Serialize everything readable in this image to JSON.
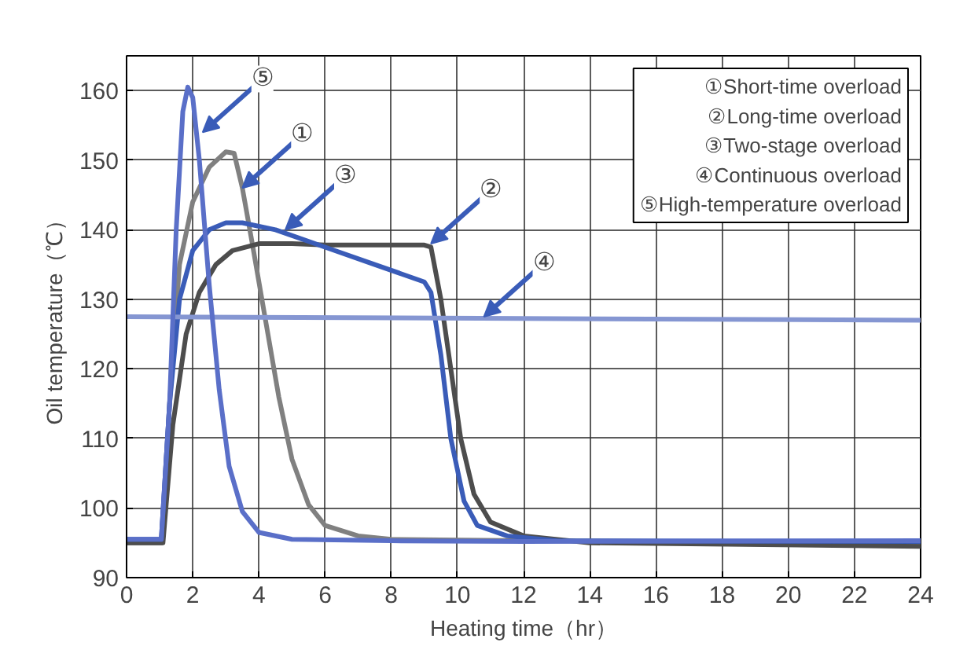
{
  "chart_data": {
    "type": "line",
    "xlabel": "Heating time（hr）",
    "ylabel": "Oil temperature（℃）",
    "xlim": [
      0,
      24
    ],
    "ylim": [
      90,
      165
    ],
    "xticks": [
      0,
      2,
      4,
      6,
      8,
      10,
      12,
      14,
      16,
      18,
      20,
      22,
      24
    ],
    "yticks": [
      90,
      100,
      110,
      120,
      130,
      140,
      150,
      160
    ],
    "grid": true,
    "line_style": "solid",
    "marker": "none",
    "series": [
      {
        "color": "#808080",
        "x": [
          0,
          1.05,
          1.3,
          1.6,
          2,
          2.5,
          3,
          3.25,
          3.5,
          3.8,
          4.2,
          4.6,
          5,
          5.5,
          6,
          7,
          8,
          12,
          24
        ],
        "values": [
          95,
          95,
          115,
          135,
          144,
          149,
          151.2,
          151,
          146,
          138,
          127,
          116,
          107,
          100.5,
          97.5,
          96,
          95.5,
          95.3,
          95
        ]
      },
      {
        "color": "#4d4d4d",
        "x": [
          0,
          1.1,
          1.4,
          1.8,
          2.2,
          2.7,
          3.2,
          4,
          5,
          6,
          9,
          9.2,
          9.5,
          9.8,
          10.1,
          10.5,
          11,
          12,
          14,
          24
        ],
        "values": [
          95,
          95,
          112,
          125,
          131,
          135,
          137,
          138,
          138,
          137.8,
          137.8,
          137.5,
          130,
          120,
          110,
          102,
          98,
          96,
          95,
          94.5
        ]
      },
      {
        "color": "#3a5cb8",
        "x": [
          0,
          1.05,
          1.3,
          1.6,
          2,
          2.5,
          3,
          3.5,
          4.5,
          6,
          7.5,
          9,
          9.2,
          9.5,
          9.8,
          10.2,
          10.6,
          11.5,
          13,
          24
        ],
        "values": [
          95.5,
          95.5,
          115,
          130,
          137,
          140,
          141,
          141,
          140,
          137.5,
          135,
          132.5,
          131,
          122,
          110,
          101,
          97.5,
          96,
          95.3,
          95.2
        ]
      },
      {
        "color": "#8596d2",
        "x": [
          0,
          24
        ],
        "values": [
          127.5,
          127
        ]
      },
      {
        "color": "#5a6fc8",
        "x": [
          0,
          1.05,
          1.3,
          1.5,
          1.7,
          1.85,
          2,
          2.2,
          2.5,
          2.8,
          3.1,
          3.5,
          4,
          5,
          8,
          12,
          24
        ],
        "values": [
          95.5,
          95.5,
          115,
          140,
          157,
          160.5,
          159,
          150,
          132,
          117,
          106,
          99.5,
          96.5,
          95.5,
          95.3,
          95.2,
          95.3
        ]
      }
    ],
    "annotations": [
      {
        "text": "①",
        "x": 3.5,
        "y": 146
      },
      {
        "text": "②",
        "x": 9.2,
        "y": 138
      },
      {
        "text": "③",
        "x": 4.8,
        "y": 140
      },
      {
        "text": "④",
        "x": 10.8,
        "y": 127.5
      },
      {
        "text": "⑤",
        "x": 2.3,
        "y": 154
      },
      "①Short-time overload",
      "②Long-time overload",
      "③Two-stage overload",
      "④Continuous overload",
      "⑤High-temperature overload"
    ]
  }
}
